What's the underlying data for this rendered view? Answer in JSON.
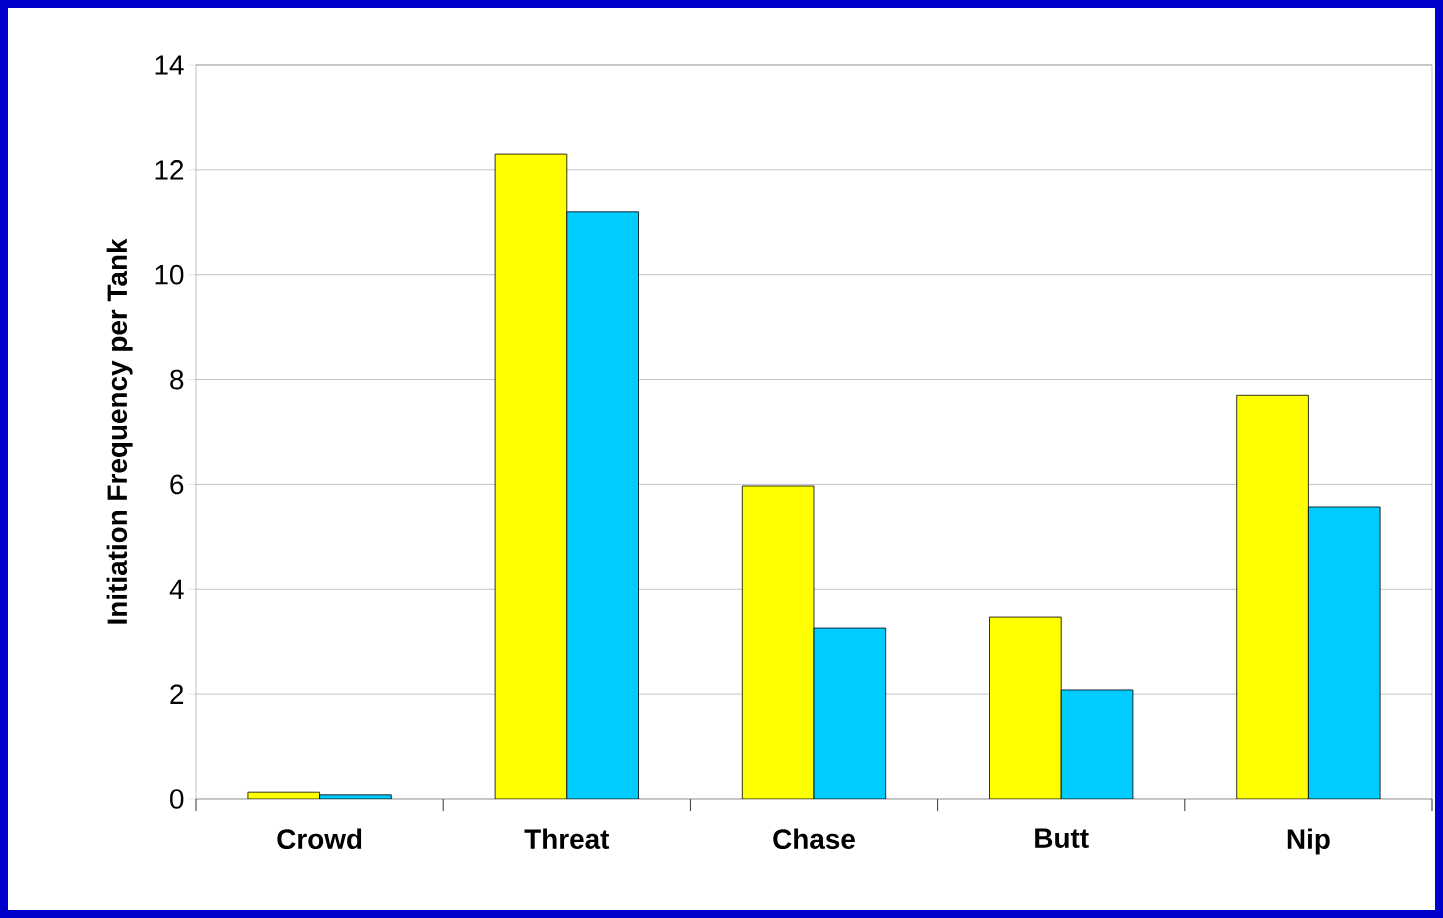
{
  "chart_data": {
    "type": "bar",
    "ylabel": "Initiation Frequency per Tank",
    "categories": [
      "Crowd",
      "Threat",
      "Chase",
      "Butt",
      "Nip"
    ],
    "series": [
      {
        "color": "#ffff00",
        "values": [
          0.13,
          12.3,
          5.97,
          3.47,
          7.7
        ]
      },
      {
        "color": "#00ccff",
        "values": [
          0.08,
          11.2,
          3.26,
          2.08,
          5.57
        ]
      }
    ],
    "ylim": [
      0,
      14
    ],
    "yticks": [
      0,
      2,
      4,
      6,
      8,
      10,
      12,
      14
    ],
    "grid": "y"
  }
}
